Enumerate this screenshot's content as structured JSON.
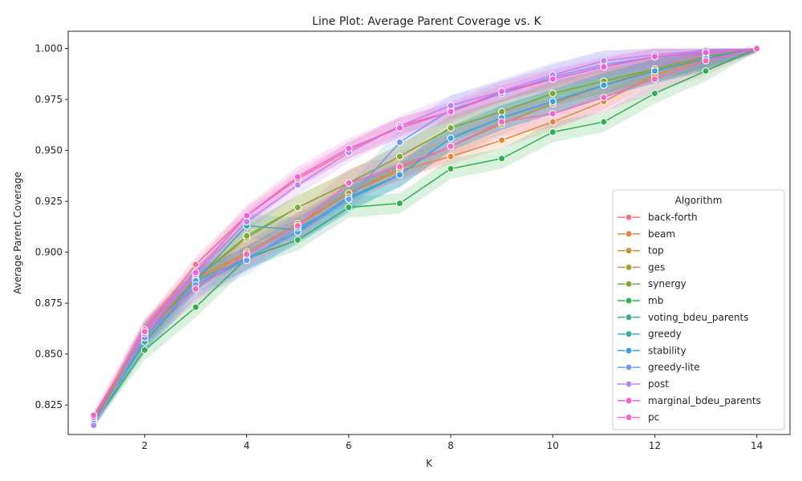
{
  "chart_data": {
    "type": "line",
    "title": "Line Plot: Average Parent Coverage vs. K",
    "xlabel": "K",
    "ylabel": "Average Parent Coverage",
    "x": [
      1,
      2,
      3,
      4,
      5,
      6,
      7,
      8,
      9,
      10,
      11,
      12,
      13,
      14
    ],
    "xlim": [
      0.5,
      14.65
    ],
    "ylim": [
      0.8105,
      1.0085
    ],
    "xticks": [
      2,
      4,
      6,
      8,
      10,
      12,
      14
    ],
    "xtick_labels": [
      "2",
      "4",
      "6",
      "8",
      "10",
      "12",
      "14"
    ],
    "yticks": [
      0.825,
      0.85,
      0.875,
      0.9,
      0.925,
      0.95,
      0.975,
      1.0
    ],
    "ytick_labels": [
      "0.825",
      "0.850",
      "0.875",
      "0.900",
      "0.925",
      "0.950",
      "0.975",
      "1.000"
    ],
    "grid": false,
    "legend": {
      "title": "Algorithm",
      "placement": "lower-right"
    },
    "series": [
      {
        "name": "back-forth",
        "color": "#f77189",
        "band": 0.004,
        "values": [
          0.818,
          0.862,
          0.894,
          0.918,
          0.936,
          0.95,
          0.962,
          0.969,
          0.978,
          0.985,
          0.991,
          0.996,
          0.998,
          1.0
        ]
      },
      {
        "name": "beam",
        "color": "#e8853a",
        "band": 0.004,
        "values": [
          0.817,
          0.86,
          0.886,
          0.899,
          0.913,
          0.929,
          0.94,
          0.947,
          0.955,
          0.964,
          0.974,
          0.987,
          0.995,
          1.0
        ]
      },
      {
        "name": "top",
        "color": "#c39532",
        "band": 0.005,
        "values": [
          0.817,
          0.86,
          0.887,
          0.9,
          0.914,
          0.929,
          0.941,
          0.952,
          0.963,
          0.973,
          0.982,
          0.99,
          0.995,
          1.0
        ]
      },
      {
        "name": "ges",
        "color": "#a39f31",
        "band": 0.006,
        "values": [
          0.817,
          0.86,
          0.887,
          0.907,
          0.922,
          0.934,
          0.947,
          0.961,
          0.969,
          0.978,
          0.984,
          0.99,
          0.996,
          1.0
        ]
      },
      {
        "name": "synergy",
        "color": "#80a831",
        "band": 0.006,
        "values": [
          0.817,
          0.86,
          0.887,
          0.908,
          0.922,
          0.934,
          0.947,
          0.961,
          0.969,
          0.978,
          0.984,
          0.99,
          0.996,
          1.0
        ]
      },
      {
        "name": "mb",
        "color": "#33b04e",
        "band": 0.005,
        "values": [
          0.816,
          0.852,
          0.873,
          0.897,
          0.906,
          0.922,
          0.924,
          0.941,
          0.946,
          0.959,
          0.964,
          0.978,
          0.989,
          1.0
        ]
      },
      {
        "name": "voting_bdeu_parents",
        "color": "#35ae93",
        "band": 0.006,
        "values": [
          0.816,
          0.856,
          0.884,
          0.897,
          0.91,
          0.926,
          0.938,
          0.956,
          0.966,
          0.974,
          0.982,
          0.989,
          0.995,
          1.0
        ]
      },
      {
        "name": "greedy",
        "color": "#37abb4",
        "band": 0.006,
        "values": [
          0.816,
          0.858,
          0.886,
          0.913,
          0.911,
          0.927,
          0.938,
          0.956,
          0.966,
          0.974,
          0.982,
          0.989,
          0.995,
          1.0
        ]
      },
      {
        "name": "stability",
        "color": "#3ba3ec",
        "band": 0.006,
        "values": [
          0.816,
          0.858,
          0.886,
          0.897,
          0.91,
          0.926,
          0.938,
          0.956,
          0.966,
          0.974,
          0.982,
          0.989,
          0.995,
          1.0
        ]
      },
      {
        "name": "greedy-lite",
        "color": "#6e9bf4",
        "band": 0.007,
        "values": [
          0.815,
          0.858,
          0.884,
          0.896,
          0.912,
          0.926,
          0.954,
          0.97,
          0.978,
          0.986,
          0.992,
          0.996,
          0.998,
          1.0
        ]
      },
      {
        "name": "post",
        "color": "#bb83f4",
        "band": 0.005,
        "values": [
          0.815,
          0.86,
          0.889,
          0.915,
          0.933,
          0.949,
          0.962,
          0.972,
          0.979,
          0.987,
          0.994,
          0.997,
          0.999,
          1.0
        ]
      },
      {
        "name": "marginal_bdeu_parents",
        "color": "#f45fe0",
        "band": 0.005,
        "values": [
          0.819,
          0.862,
          0.89,
          0.918,
          0.937,
          0.951,
          0.961,
          0.969,
          0.979,
          0.985,
          0.991,
          0.996,
          0.998,
          1.0
        ]
      },
      {
        "name": "pc",
        "color": "#f668c2",
        "band": 0.007,
        "values": [
          0.82,
          0.861,
          0.882,
          0.899,
          0.913,
          0.934,
          0.942,
          0.952,
          0.964,
          0.968,
          0.976,
          0.985,
          0.994,
          1.0
        ]
      }
    ]
  }
}
